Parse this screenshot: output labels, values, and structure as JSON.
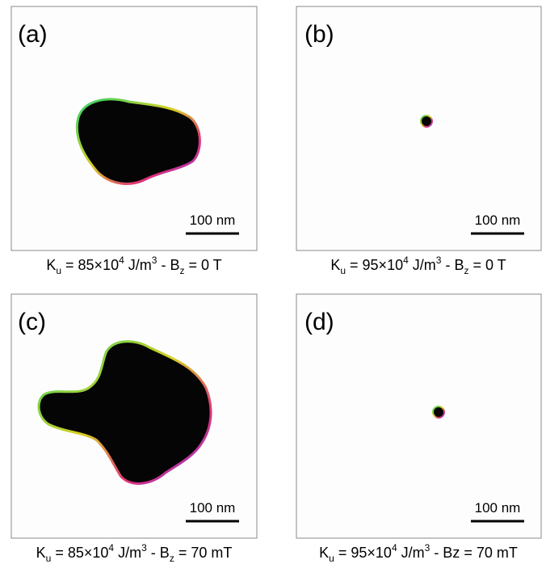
{
  "panels": [
    {
      "label": "(a)",
      "scale_bar": "100 nm",
      "caption": [
        "K",
        "u",
        " = 85×10",
        "4",
        " J/m",
        "3",
        " - B",
        "z",
        " = 0 T"
      ]
    },
    {
      "label": "(b)",
      "scale_bar": "100 nm",
      "caption": [
        "K",
        "u",
        " = 95×10",
        "4",
        " J/m",
        "3",
        " - B",
        "z",
        " = 0 T"
      ]
    },
    {
      "label": "(c)",
      "scale_bar": "100 nm",
      "caption": [
        "K",
        "u",
        " = 85×10",
        "4",
        " J/m",
        "3",
        " - B",
        "z",
        " = 70 mT"
      ]
    },
    {
      "label": "(d)",
      "scale_bar": "100 nm",
      "caption": [
        "K",
        "u",
        " = 95×10",
        "4",
        " J/m",
        "3",
        " - Bz = 70 mT"
      ]
    }
  ]
}
